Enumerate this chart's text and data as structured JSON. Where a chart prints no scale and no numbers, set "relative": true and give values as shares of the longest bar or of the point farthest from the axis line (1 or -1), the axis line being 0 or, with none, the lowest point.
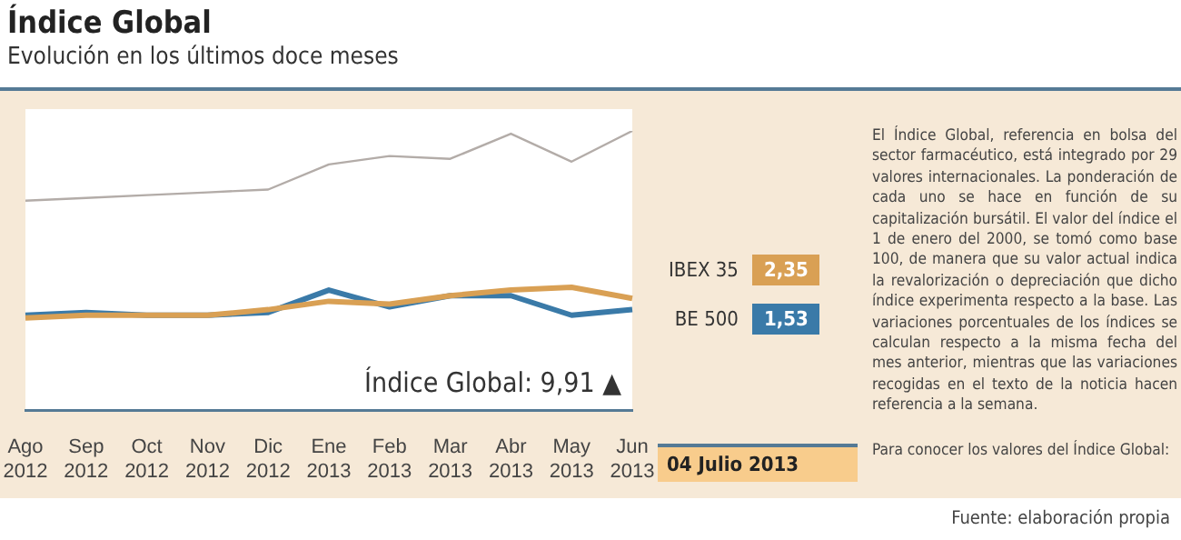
{
  "chart_data": {
    "type": "line",
    "title": "Índice Global",
    "subtitle": "Evolución en los últimos doce meses",
    "relative": true,
    "categories": [
      "Ago 2012",
      "Sep 2012",
      "Oct 2012",
      "Nov 2012",
      "Dic 2012",
      "Ene 2013",
      "Feb 2013",
      "Mar 2013",
      "Abr 2013",
      "May 2013",
      "Jun 2013"
    ],
    "series": [
      {
        "color": "#b3aca8",
        "values": [
          0.75,
          0.76,
          0.77,
          0.78,
          0.79,
          0.88,
          0.91,
          0.9,
          0.99,
          0.89,
          1
        ]
      },
      {
        "name": "IBEX 35",
        "color": "#d9a054",
        "values": [
          0.33,
          0.34,
          0.34,
          0.34,
          0.36,
          0.39,
          0.38,
          0.41,
          0.43,
          0.44,
          0.4
        ]
      },
      {
        "name": "BE 500",
        "color": "#3a7aa8",
        "values": [
          0.34,
          0.35,
          0.34,
          0.34,
          0.35,
          0.43,
          0.37,
          0.41,
          0.41,
          0.34,
          0.36
        ]
      }
    ],
    "legend": "right",
    "marker": "none",
    "line_style": "solid",
    "annotations": [
      "Índice Global: 9,91 ▲",
      "2,35",
      "1,53",
      "04 Julio 2013",
      "El Índice Global, referencia en bolsa del sector farmacéutico, está integrado por 29 valores internacionales. La ponderación de cada uno se hace en función de su capitalización bursátil. El valor del índice el 1 de enero del 2000, se tomó como base 100, de manera que su valor actual indica la revalorización o depreciación que dicho índice experimenta respecto a la base. Las variaciones porcentuales de los índices se calculan respecto a la misma fecha del mes anterior, mientras que las variaciones recogidas en el texto de la noticia hacen referencia a la semana.",
      "Para conocer los valores del Índice Global:",
      "Fuente: elaboración propia"
    ]
  }
}
